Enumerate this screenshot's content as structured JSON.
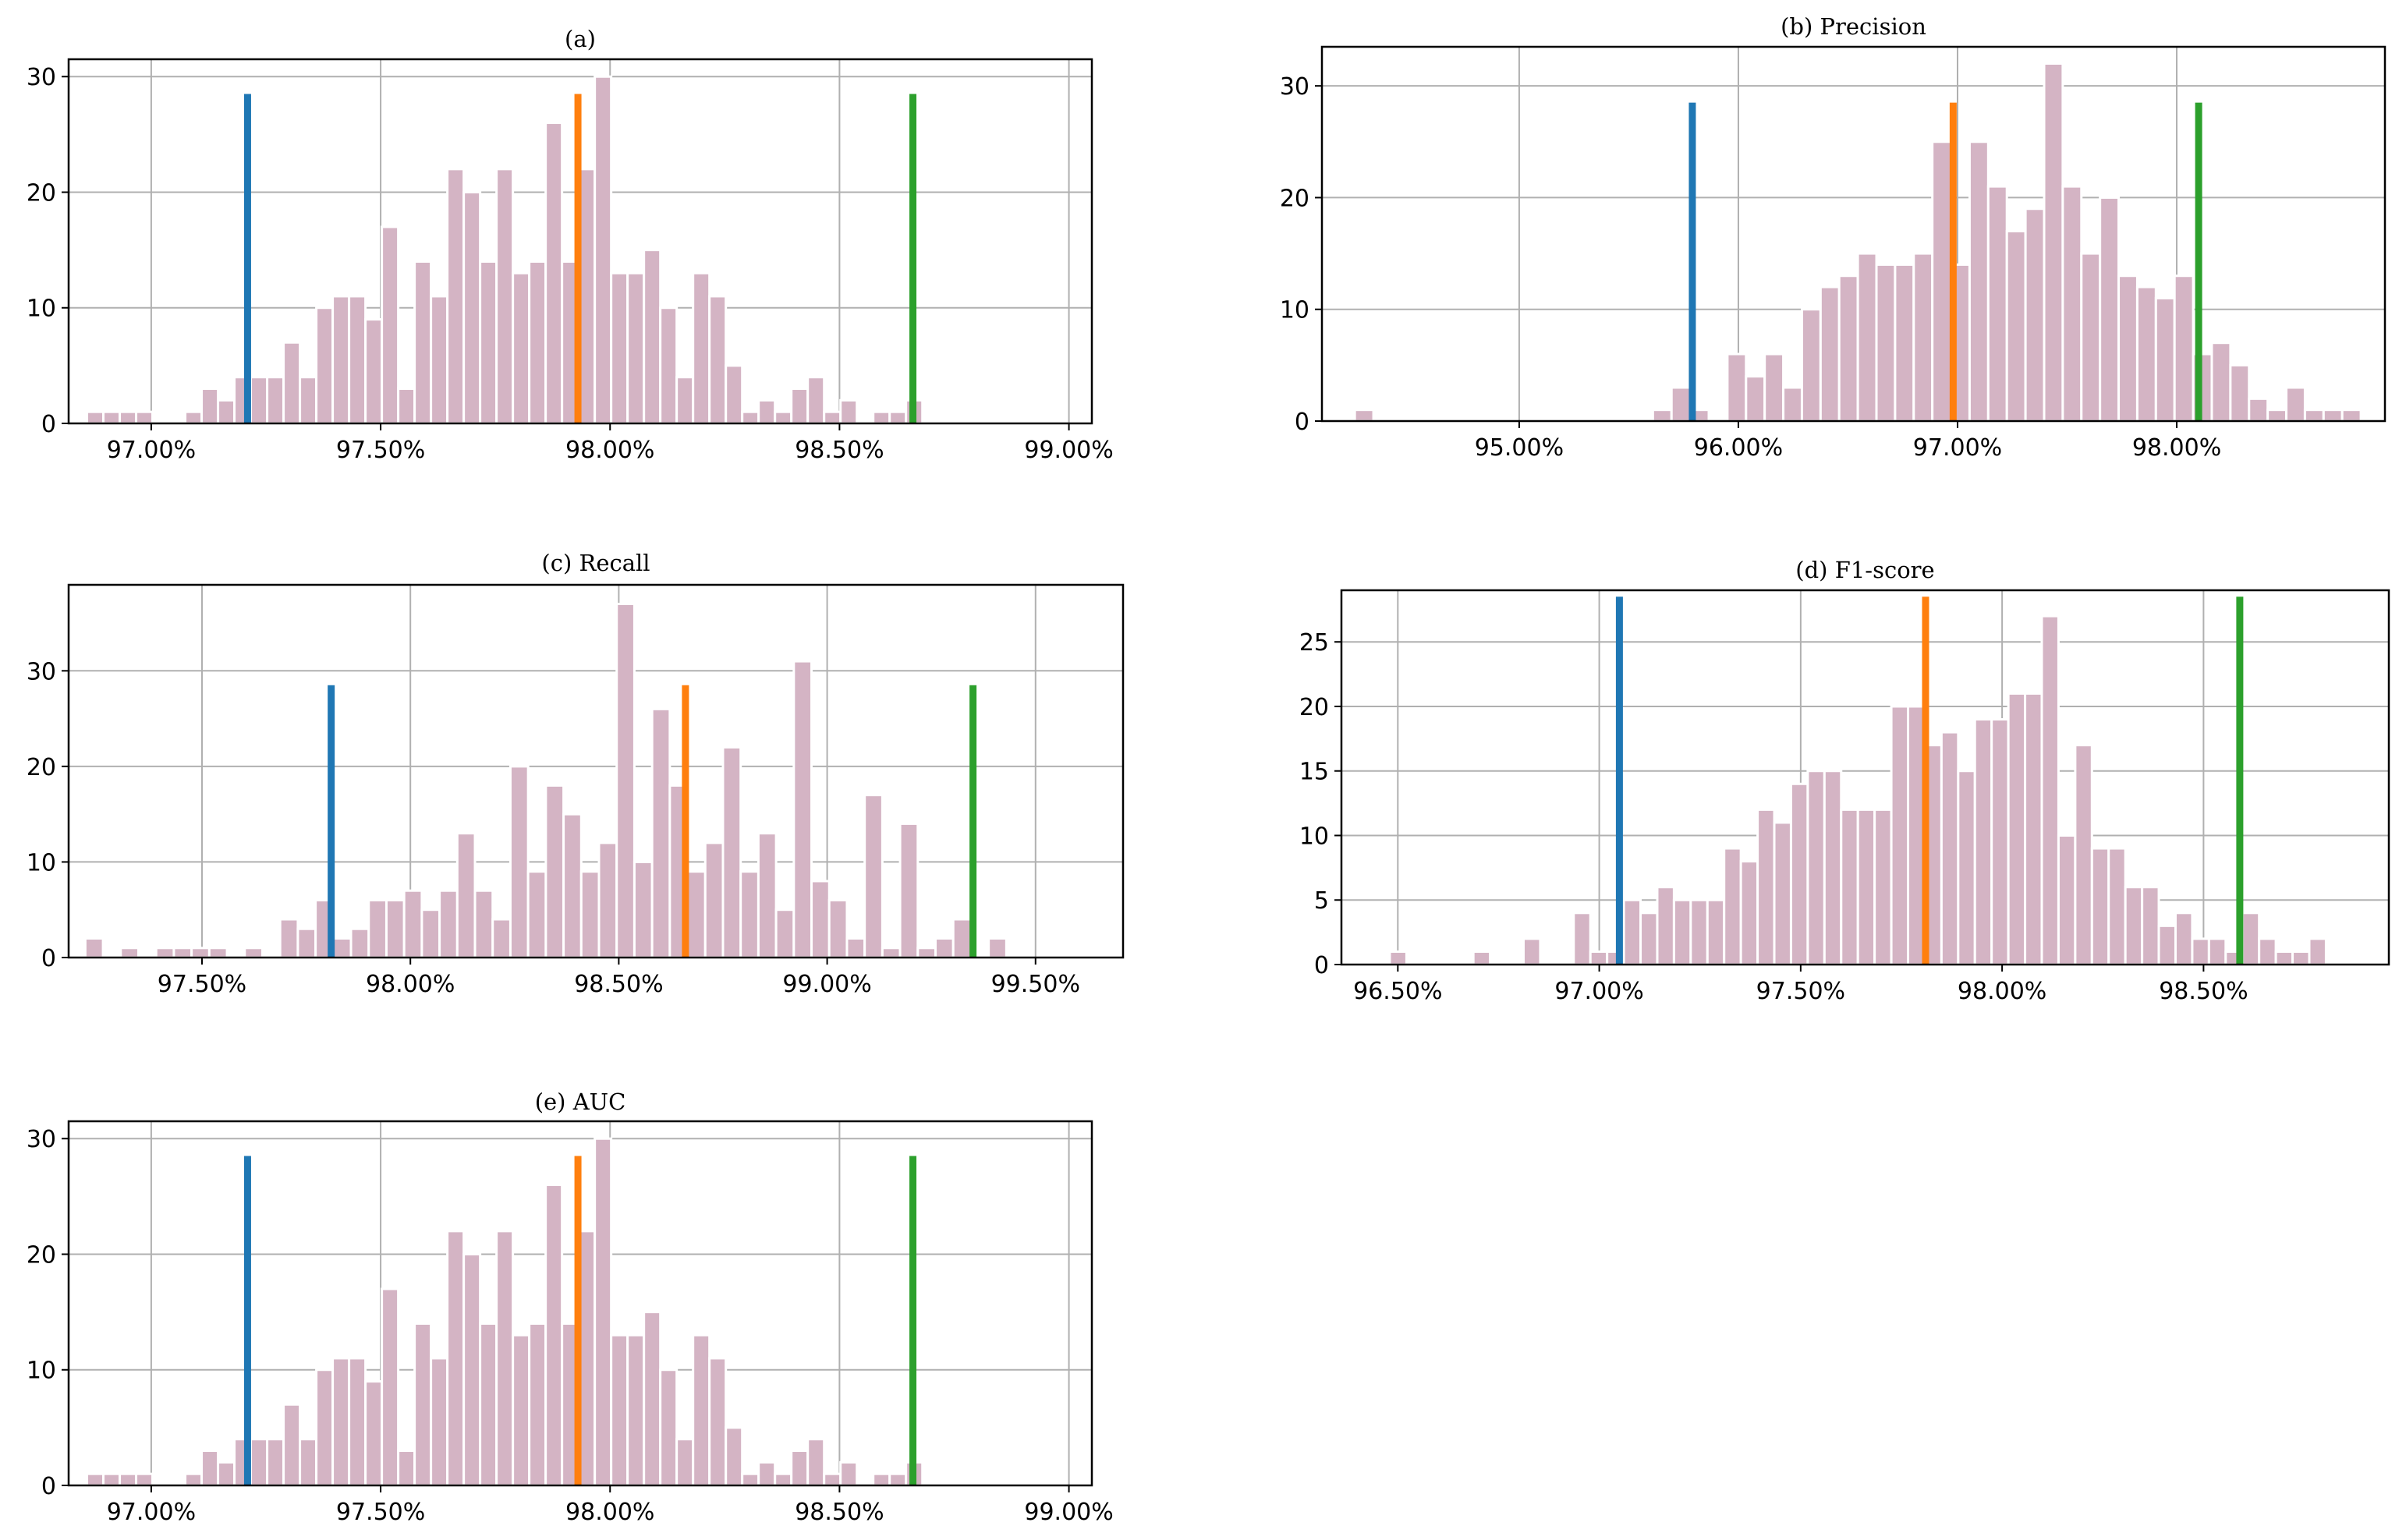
{
  "colors": {
    "hist": "#d4b4c4",
    "grid": "#b0b0b0",
    "marker_lower": "#1f77b4",
    "marker_mean": "#ff7f0e",
    "marker_upper": "#2ca02c"
  },
  "chart_data": [
    {
      "id": "a",
      "type": "bar",
      "title": "(a)",
      "xlim": [
        96.82,
        99.05
      ],
      "ylim": [
        0,
        31.5
      ],
      "xticks": [
        97.0,
        97.5,
        98.0,
        98.5,
        99.0
      ],
      "xtick_labels": [
        "97.00%",
        "97.50%",
        "98.00%",
        "98.50%",
        "99.00%"
      ],
      "yticks": [
        0,
        10,
        20,
        30
      ],
      "ytick_labels": [
        "0",
        "10",
        "20",
        "30"
      ],
      "bin_start": 96.86,
      "bin_width": 0.0357,
      "values": [
        1,
        1,
        1,
        1,
        0,
        0,
        1,
        3,
        2,
        4,
        4,
        4,
        7,
        4,
        10,
        11,
        11,
        9,
        17,
        3,
        14,
        11,
        22,
        20,
        14,
        22,
        13,
        14,
        26,
        14,
        22,
        30,
        13,
        13,
        15,
        10,
        4,
        13,
        11,
        5,
        1,
        2,
        1,
        3,
        4,
        1,
        2,
        0,
        1,
        1,
        2
      ],
      "markers": [
        97.21,
        97.93,
        98.66
      ],
      "marker_height": 28.5
    },
    {
      "id": "b",
      "type": "bar",
      "title": "(b) Precision",
      "xlim": [
        94.1,
        98.95
      ],
      "ylim": [
        0,
        33.5
      ],
      "xticks": [
        95.0,
        96.0,
        97.0,
        98.0
      ],
      "xtick_labels": [
        "95.00%",
        "96.00%",
        "97.00%",
        "98.00%"
      ],
      "yticks": [
        0,
        10,
        20,
        30
      ],
      "ytick_labels": [
        "0",
        "10",
        "20",
        "30"
      ],
      "bin_start": 94.25,
      "bin_width": 0.085,
      "values": [
        1,
        0,
        0,
        0,
        0,
        0,
        0,
        0,
        0,
        0,
        0,
        0,
        0,
        0,
        0,
        0,
        1,
        3,
        1,
        0,
        6,
        4,
        6,
        3,
        10,
        12,
        13,
        15,
        14,
        14,
        15,
        25,
        14,
        25,
        21,
        17,
        19,
        32,
        21,
        15,
        20,
        13,
        12,
        11,
        13,
        6,
        7,
        5,
        2,
        1,
        3,
        1,
        1,
        1
      ],
      "markers": [
        95.79,
        96.98,
        98.1
      ],
      "marker_height": 28.5
    },
    {
      "id": "c",
      "type": "bar",
      "title": "(c) Recall",
      "xlim": [
        97.18,
        99.71
      ],
      "ylim": [
        0,
        39
      ],
      "xticks": [
        97.5,
        98.0,
        98.5,
        99.0,
        99.5
      ],
      "xtick_labels": [
        "97.50%",
        "98.00%",
        "98.50%",
        "99.00%",
        "99.50%"
      ],
      "yticks": [
        0,
        10,
        20,
        30
      ],
      "ytick_labels": [
        "0",
        "10",
        "20",
        "30"
      ],
      "bin_start": 97.22,
      "bin_width": 0.0425,
      "values": [
        2,
        0,
        1,
        0,
        1,
        1,
        1,
        1,
        0,
        1,
        0,
        4,
        3,
        6,
        2,
        3,
        6,
        6,
        7,
        5,
        7,
        13,
        7,
        4,
        20,
        9,
        18,
        15,
        9,
        12,
        37,
        10,
        26,
        18,
        9,
        12,
        22,
        9,
        13,
        5,
        31,
        8,
        6,
        2,
        17,
        1,
        14,
        1,
        2,
        4,
        0,
        2
      ],
      "markers": [
        97.81,
        98.66,
        99.35
      ],
      "marker_height": 28.5
    },
    {
      "id": "d",
      "type": "bar",
      "title": "(d) F1-score",
      "xlim": [
        96.36,
        98.96
      ],
      "ylim": [
        0,
        29
      ],
      "xticks": [
        96.5,
        97.0,
        97.5,
        98.0,
        98.5
      ],
      "xtick_labels": [
        "96.50%",
        "97.00%",
        "97.50%",
        "98.00%",
        "98.50%"
      ],
      "yticks": [
        0,
        5,
        10,
        15,
        20,
        25
      ],
      "ytick_labels": [
        "0",
        "5",
        "10",
        "15",
        "20",
        "25"
      ],
      "bin_start": 96.48,
      "bin_width": 0.0415,
      "values": [
        1,
        0,
        0,
        0,
        0,
        1,
        0,
        0,
        2,
        0,
        0,
        4,
        1,
        1,
        5,
        4,
        6,
        5,
        5,
        5,
        9,
        8,
        12,
        11,
        14,
        15,
        15,
        12,
        12,
        12,
        20,
        20,
        17,
        18,
        15,
        19,
        19,
        21,
        21,
        27,
        10,
        17,
        9,
        9,
        6,
        6,
        3,
        4,
        2,
        2,
        1,
        4,
        2,
        1,
        1,
        2
      ],
      "markers": [
        97.05,
        97.81,
        98.59
      ],
      "marker_height": 28.5
    },
    {
      "id": "e",
      "type": "bar",
      "title": "(e) AUC",
      "xlim": [
        96.82,
        99.05
      ],
      "ylim": [
        0,
        31.5
      ],
      "xticks": [
        97.0,
        97.5,
        98.0,
        98.5,
        99.0
      ],
      "xtick_labels": [
        "97.00%",
        "97.50%",
        "98.00%",
        "98.50%",
        "99.00%"
      ],
      "yticks": [
        0,
        10,
        20,
        30
      ],
      "ytick_labels": [
        "0",
        "10",
        "20",
        "30"
      ],
      "bin_start": 96.86,
      "bin_width": 0.0357,
      "values": [
        1,
        1,
        1,
        1,
        0,
        0,
        1,
        3,
        2,
        4,
        4,
        4,
        7,
        4,
        10,
        11,
        11,
        9,
        17,
        3,
        14,
        11,
        22,
        20,
        14,
        22,
        13,
        14,
        26,
        14,
        22,
        30,
        13,
        13,
        15,
        10,
        4,
        13,
        11,
        5,
        1,
        2,
        1,
        3,
        4,
        1,
        2,
        0,
        1,
        1,
        2
      ],
      "markers": [
        97.21,
        97.93,
        98.66
      ],
      "marker_height": 28.5
    }
  ]
}
